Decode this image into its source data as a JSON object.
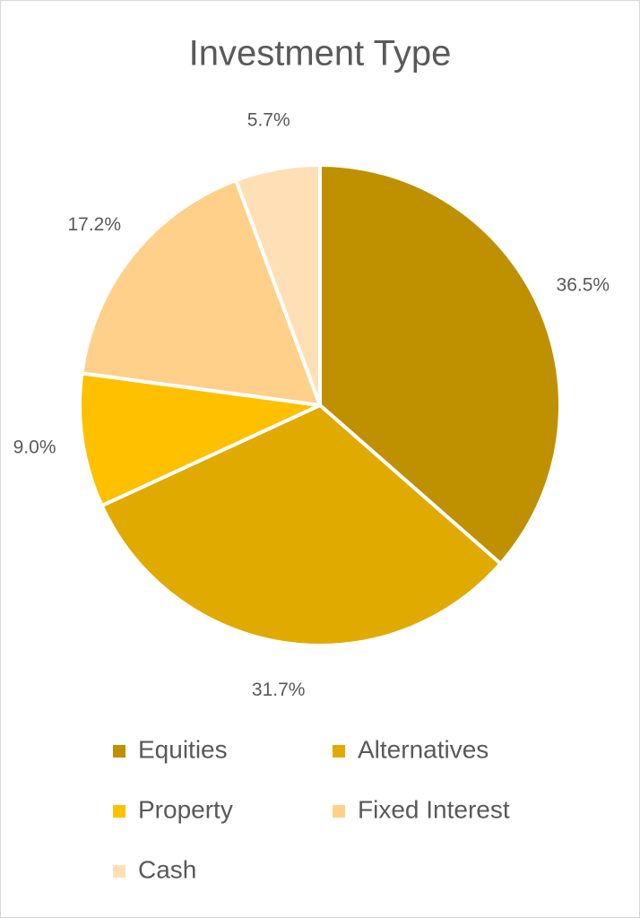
{
  "chart_data": {
    "type": "pie",
    "title": "Investment Type",
    "categories": [
      "Equities",
      "Alternatives",
      "Property",
      "Fixed Interest",
      "Cash"
    ],
    "values": [
      36.5,
      31.7,
      9.0,
      17.2,
      5.7
    ],
    "value_labels": [
      "36.5%",
      "31.7%",
      "9.0%",
      "17.2%",
      "5.7%"
    ],
    "colors": [
      "#bf9000",
      "#e0aa00",
      "#ffc000",
      "#ffd08a",
      "#ffe0b6"
    ],
    "legend": "bottom"
  }
}
